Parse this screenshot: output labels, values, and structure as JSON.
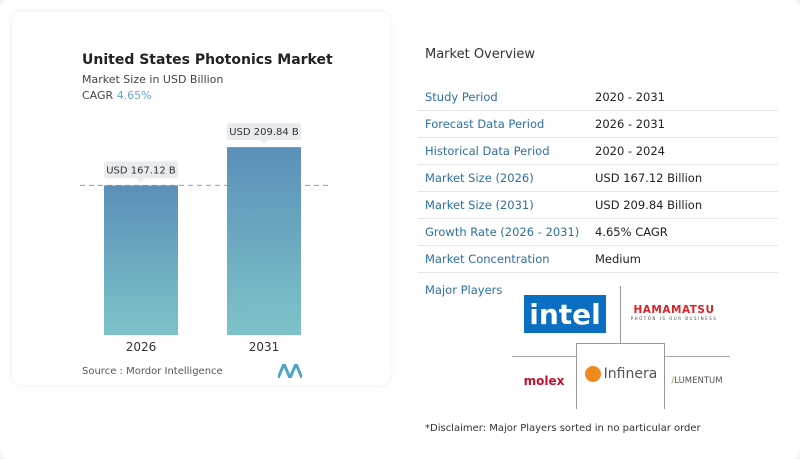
{
  "chart_data": {
    "type": "bar",
    "title": "United States Photonics Market",
    "subtitle": "Market Size in USD Billion",
    "cagr_label": "CAGR",
    "cagr_value": "4.65%",
    "categories": [
      "2026",
      "2031"
    ],
    "values": [
      167.12,
      209.84
    ],
    "data_labels": [
      "USD 167.12 B",
      "USD 209.84 B"
    ],
    "bar_color_top": "#5b8fb8",
    "bar_color_bottom": "#7ec3c9",
    "reference_line": "dashed at 2026 value",
    "source": "Source :  Mordor Intelligence"
  },
  "overview": {
    "title": "Market Overview",
    "rows": [
      {
        "label": "Study Period",
        "value": "2020 - 2031"
      },
      {
        "label": "Forecast Data Period",
        "value": "2026 - 2031"
      },
      {
        "label": "Historical Data Period",
        "value": "2020 - 2024"
      },
      {
        "label": "Market Size (2026)",
        "value": "USD 167.12 Billion"
      },
      {
        "label": "Market Size (2031)",
        "value": "USD 209.84 Billion"
      },
      {
        "label": "Growth Rate (2026 - 2031)",
        "value": "4.65% CAGR"
      },
      {
        "label": "Market Concentration",
        "value": "Medium"
      }
    ],
    "major_players_label": "Major Players",
    "players": [
      "intel",
      "HAMAMATSU",
      "molex",
      "Infinera",
      "LUMENTUM"
    ],
    "hamamatsu_tagline": "PHOTON IS OUR BUSINESS",
    "disclaimer": "*Disclaimer: Major Players sorted in no particular order"
  }
}
